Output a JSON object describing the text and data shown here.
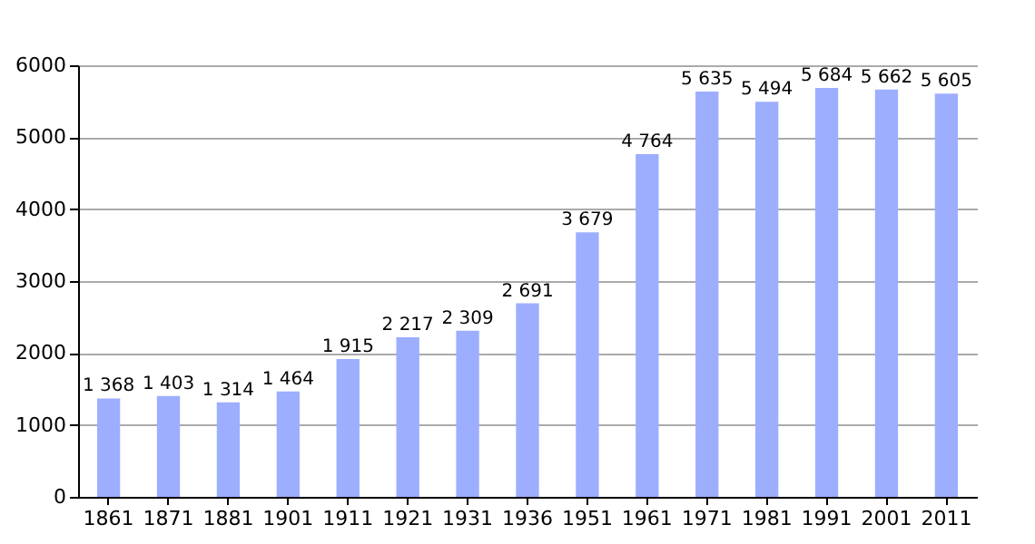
{
  "chart_data": {
    "type": "bar",
    "categories": [
      "1861",
      "1871",
      "1881",
      "1901",
      "1911",
      "1921",
      "1931",
      "1936",
      "1951",
      "1961",
      "1971",
      "1981",
      "1991",
      "2001",
      "2011"
    ],
    "values": [
      1368,
      1403,
      1314,
      1464,
      1915,
      2217,
      2309,
      2691,
      3679,
      4764,
      5635,
      5494,
      5684,
      5662,
      5605
    ],
    "value_labels": [
      "1 368",
      "1 403",
      "1 314",
      "1 464",
      "1 915",
      "2 217",
      "2 309",
      "2 691",
      "3 679",
      "4 764",
      "5 635",
      "5 494",
      "5 684",
      "5 662",
      "5 605"
    ],
    "color": "#9daeff",
    "ylim": [
      0,
      6000
    ],
    "yticks": [
      0,
      1000,
      2000,
      3000,
      4000,
      5000,
      6000
    ],
    "grid": "y"
  }
}
